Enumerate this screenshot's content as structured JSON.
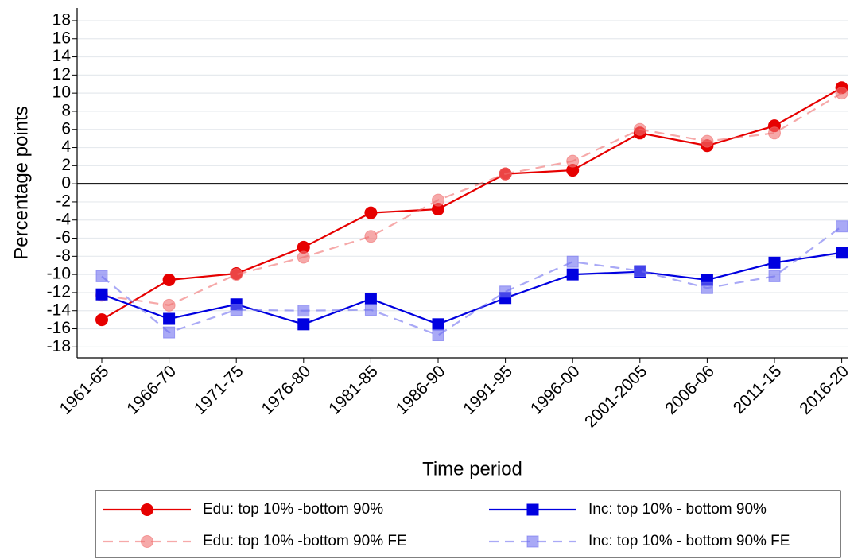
{
  "chart_data": {
    "type": "line",
    "y_label": "Percentage points",
    "x_label": "Time period",
    "categories": [
      "1961-65",
      "1966-70",
      "1971-75",
      "1976-80",
      "1981-85",
      "1986-90",
      "1991-95",
      "1996-00",
      "2001-2005",
      "2006-06",
      "2011-15",
      "2016-20"
    ],
    "series": [
      {
        "name": "Edu: top 10% -bottom 90%",
        "color": "#e60000",
        "dashed": false,
        "marker": "circle",
        "opacity": 1,
        "values": [
          -15.0,
          -10.6,
          -9.9,
          -7.0,
          -3.2,
          -2.8,
          1.1,
          1.5,
          5.6,
          4.2,
          6.4,
          10.6
        ]
      },
      {
        "name": "Edu: top 10% -bottom 90% FE",
        "color": "#f07070",
        "dashed": true,
        "marker": "circle",
        "opacity": 0.6,
        "values": [
          -12.3,
          -13.4,
          -10.0,
          -8.1,
          -5.8,
          -1.8,
          1.1,
          2.5,
          6.0,
          4.7,
          5.6,
          10.0
        ]
      },
      {
        "name": "Inc: top 10% - bottom 90%",
        "color": "#0000e0",
        "dashed": false,
        "marker": "square",
        "opacity": 1,
        "values": [
          -12.2,
          -14.9,
          -13.3,
          -15.5,
          -12.7,
          -15.5,
          -12.6,
          -10.0,
          -9.7,
          -10.6,
          -8.7,
          -7.6
        ]
      },
      {
        "name": "Inc: top 10% - bottom 90% FE",
        "color": "#7070f0",
        "dashed": true,
        "marker": "square",
        "opacity": 0.6,
        "values": [
          -10.2,
          -16.4,
          -13.9,
          -14.0,
          -13.9,
          -16.7,
          -11.9,
          -8.6,
          -9.6,
          -11.5,
          -10.2,
          -4.7
        ]
      }
    ],
    "ylim": [
      -19.2,
      19.4
    ],
    "yticks": [
      -18,
      -16,
      -14,
      -12,
      -10,
      -8,
      -6,
      -4,
      -2,
      0,
      2,
      4,
      6,
      8,
      10,
      12,
      14,
      16,
      18
    ],
    "grid": true,
    "hline": 0,
    "legend": "bottom"
  }
}
